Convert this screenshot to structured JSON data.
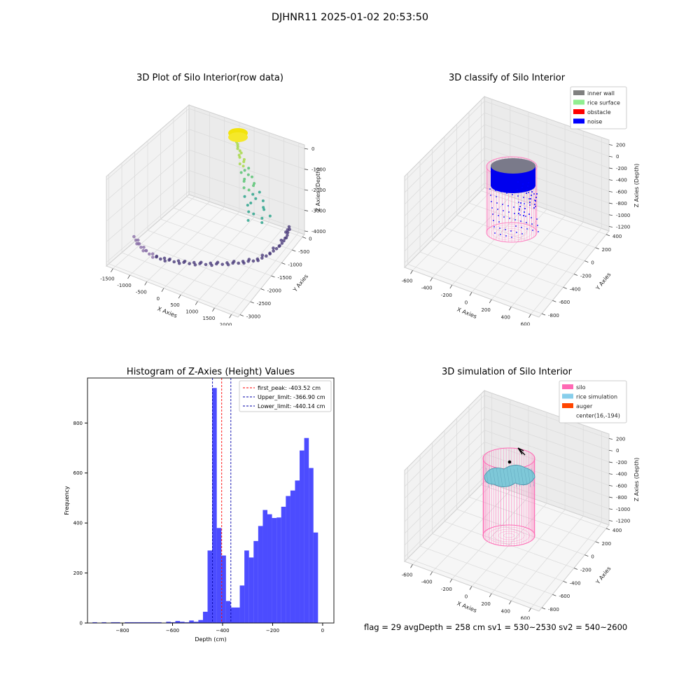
{
  "suptitle": "DJHNR11 2025-01-02 20:53:50",
  "footer": "flag = 29  avgDepth = 258 cm  sv1 = 530~2530  sv2 = 540~2600",
  "panels": {
    "raw": {
      "title": "3D Plot of Silo Interior(row data)",
      "xlabel": "X Axies",
      "ylabel": "Y Axies",
      "zlabel": "Z Axies (Depth)",
      "xticks": [
        "-1500",
        "-1000",
        "-500",
        "0",
        "500",
        "1000",
        "1500",
        "2000"
      ],
      "yticks": [
        "0",
        "-500",
        "-1000",
        "-1500",
        "-2000",
        "-2500",
        "-3000"
      ],
      "zticks": [
        "0",
        "-1000",
        "-2000",
        "-3000",
        "-4000"
      ]
    },
    "classify": {
      "title": "3D classify of Silo Interior",
      "xlabel": "X Axies",
      "ylabel": "Y Axies",
      "zlabel": "Z Axies (Depth)",
      "xticks": [
        "-600",
        "-400",
        "-200",
        "0",
        "200",
        "400",
        "600"
      ],
      "yticks": [
        "400",
        "200",
        "0",
        "-200",
        "-400",
        "-600",
        "-800"
      ],
      "zticks": [
        "200",
        "0",
        "-200",
        "-400",
        "-600",
        "-800",
        "-1000",
        "-1200"
      ],
      "legend": [
        {
          "label": "inner wall",
          "color": "#808080"
        },
        {
          "label": "rice surface",
          "color": "#90ee90"
        },
        {
          "label": "obstacle",
          "color": "#ff0000"
        },
        {
          "label": "noise",
          "color": "#0000ff"
        }
      ]
    },
    "simulation": {
      "title": "3D simulation of Silo Interior",
      "xlabel": "X Axies",
      "ylabel": "Y Axies",
      "zlabel": "Z Axies (Depth)",
      "xticks": [
        "-600",
        "-400",
        "-200",
        "0",
        "200",
        "400",
        "600"
      ],
      "yticks": [
        "400",
        "200",
        "0",
        "-200",
        "-400",
        "-600",
        "-800"
      ],
      "zticks": [
        "200",
        "0",
        "-200",
        "-400",
        "-600",
        "-800",
        "-1000",
        "-1200"
      ],
      "legend": [
        {
          "label": "silo",
          "color": "#ff69b4"
        },
        {
          "label": "rice simulation",
          "color": "#87ceeb"
        },
        {
          "label": "auger",
          "color": "#ff4500"
        },
        {
          "label": "center(16,-194)",
          "color": ""
        }
      ]
    }
  },
  "chart_data": {
    "type": "bar",
    "title": "Histogram of Z-Axies (Height) Values",
    "xlabel": "Depth (cm)",
    "ylabel": "Frequency",
    "xlim": [
      -940,
      45
    ],
    "ylim": [
      0,
      980
    ],
    "xticks": [
      -800,
      -600,
      -400,
      -200,
      0
    ],
    "yticks": [
      0,
      200,
      400,
      600,
      800
    ],
    "bin_start": -920,
    "bin_width": 18.4,
    "values": [
      3,
      0,
      3,
      0,
      3,
      3,
      0,
      3,
      3,
      3,
      3,
      3,
      3,
      3,
      3,
      0,
      5,
      3,
      8,
      5,
      3,
      10,
      5,
      12,
      45,
      290,
      940,
      380,
      270,
      88,
      62,
      62,
      150,
      290,
      262,
      328,
      388,
      452,
      435,
      420,
      422,
      465,
      508,
      530,
      570,
      690,
      740,
      620,
      362
    ],
    "series_color": "#0000ff",
    "vlines": [
      {
        "x": -403.52,
        "color": "#ff0000",
        "label": "first_peak: -403.52 cm"
      },
      {
        "x": -366.9,
        "color": "#0000aa",
        "label": "Upper_limit: -366.90 cm"
      },
      {
        "x": -440.14,
        "color": "#0000aa",
        "label": "Lower_limit: -440.14 cm"
      }
    ],
    "legend_position": "top-right"
  }
}
